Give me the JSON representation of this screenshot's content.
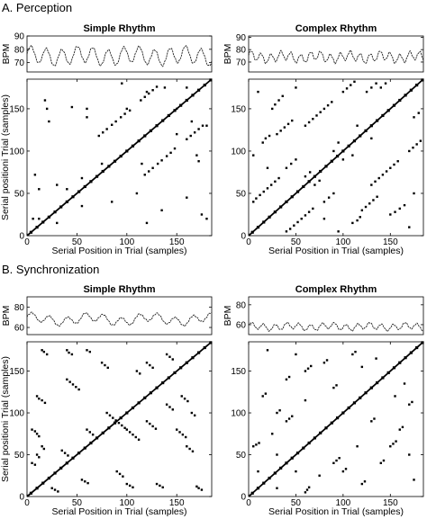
{
  "sections": [
    {
      "label": "A. Perception"
    },
    {
      "label": "B. Synchronization"
    }
  ],
  "chart_data": [
    {
      "type": "line",
      "panel": "A-simple-bpm",
      "title": "Simple Rhythm",
      "ylabel": "BPM",
      "xlim": [
        0,
        185
      ],
      "ylim": [
        63,
        90
      ],
      "yticks": [
        "70",
        "80",
        "90"
      ],
      "xticks": [],
      "signal": {
        "base": 75,
        "amp": 6,
        "period": 15.5,
        "wobble": 1.5
      },
      "grid": false
    },
    {
      "type": "scatter",
      "panel": "A-simple-rp",
      "title": "",
      "xlabel": "Serial Position in Trial (samples)",
      "ylabel": "Serial positioni Trial (samples)",
      "xlim": [
        0,
        185
      ],
      "ylim": [
        0,
        185
      ],
      "xticks": [
        "0",
        "50",
        "100",
        "150"
      ],
      "yticks": [
        "0",
        "50",
        "100",
        "150"
      ],
      "diagonal": true,
      "points": [
        [
          72,
          118
        ],
        [
          76,
          122
        ],
        [
          80,
          126
        ],
        [
          85,
          131
        ],
        [
          89,
          135
        ],
        [
          94,
          140
        ],
        [
          98,
          144
        ],
        [
          103,
          148
        ],
        [
          114,
          160
        ],
        [
          118,
          164
        ],
        [
          122,
          168
        ],
        [
          126,
          172
        ],
        [
          130,
          176
        ],
        [
          118,
          72
        ],
        [
          122,
          76
        ],
        [
          126,
          80
        ],
        [
          131,
          85
        ],
        [
          135,
          89
        ],
        [
          140,
          94
        ],
        [
          144,
          98
        ],
        [
          148,
          103
        ],
        [
          160,
          114
        ],
        [
          164,
          118
        ],
        [
          168,
          122
        ],
        [
          172,
          126
        ],
        [
          176,
          130
        ],
        [
          18,
          160
        ],
        [
          30,
          15
        ],
        [
          45,
          152
        ],
        [
          55,
          35
        ],
        [
          60,
          150
        ],
        [
          85,
          40
        ],
        [
          95,
          180
        ],
        [
          100,
          150
        ],
        [
          110,
          50
        ],
        [
          120,
          170
        ],
        [
          138,
          175
        ],
        [
          150,
          120
        ],
        [
          160,
          45
        ],
        [
          170,
          95
        ],
        [
          180,
          20
        ],
        [
          20,
          150
        ],
        [
          22,
          135
        ],
        [
          8,
          72
        ],
        [
          12,
          55
        ],
        [
          160,
          175
        ],
        [
          150,
          150
        ],
        [
          75,
          85
        ],
        [
          40,
          55
        ],
        [
          30,
          60
        ],
        [
          135,
          30
        ],
        [
          172,
          88
        ],
        [
          175,
          25
        ],
        [
          120,
          15
        ],
        [
          12,
          20
        ],
        [
          55,
          68
        ],
        [
          60,
          140
        ],
        [
          6,
          20
        ],
        [
          165,
          135
        ],
        [
          180,
          130
        ],
        [
          115,
          85
        ]
      ],
      "grid": false
    },
    {
      "type": "line",
      "panel": "A-complex-bpm",
      "title": "Complex Rhythm",
      "ylabel": "BPM",
      "xlim": [
        0,
        185
      ],
      "ylim": [
        62,
        91
      ],
      "yticks": [
        "70",
        "80",
        "90"
      ],
      "xticks": [],
      "signal": {
        "base": 74,
        "amp": 3.5,
        "period": 10.5,
        "wobble": 1.5
      },
      "grid": false
    },
    {
      "type": "scatter",
      "panel": "A-complex-rp",
      "title": "",
      "xlabel": "Serial Position in Trial (samples)",
      "ylabel": "",
      "xlim": [
        0,
        185
      ],
      "ylim": [
        0,
        185
      ],
      "xticks": [
        "0",
        "50",
        "100",
        "150"
      ],
      "yticks": [
        "0",
        "50",
        "100",
        "150"
      ],
      "diagonal": true,
      "points": [
        [
          5,
          40
        ],
        [
          8,
          44
        ],
        [
          12,
          48
        ],
        [
          16,
          52
        ],
        [
          20,
          56
        ],
        [
          24,
          60
        ],
        [
          28,
          64
        ],
        [
          32,
          68
        ],
        [
          40,
          5
        ],
        [
          44,
          8
        ],
        [
          48,
          12
        ],
        [
          52,
          16
        ],
        [
          56,
          20
        ],
        [
          60,
          24
        ],
        [
          64,
          28
        ],
        [
          68,
          32
        ],
        [
          60,
          130
        ],
        [
          64,
          134
        ],
        [
          68,
          138
        ],
        [
          72,
          142
        ],
        [
          76,
          146
        ],
        [
          80,
          150
        ],
        [
          84,
          154
        ],
        [
          88,
          158
        ],
        [
          130,
          60
        ],
        [
          134,
          64
        ],
        [
          138,
          68
        ],
        [
          142,
          72
        ],
        [
          146,
          76
        ],
        [
          150,
          80
        ],
        [
          154,
          84
        ],
        [
          158,
          88
        ],
        [
          100,
          170
        ],
        [
          104,
          174
        ],
        [
          108,
          178
        ],
        [
          112,
          182
        ],
        [
          170,
          100
        ],
        [
          174,
          104
        ],
        [
          178,
          108
        ],
        [
          182,
          112
        ],
        [
          125,
          170
        ],
        [
          130,
          175
        ],
        [
          135,
          180
        ],
        [
          120,
          30
        ],
        [
          124,
          34
        ],
        [
          128,
          38
        ],
        [
          132,
          42
        ],
        [
          136,
          46
        ],
        [
          30,
          120
        ],
        [
          34,
          124
        ],
        [
          38,
          128
        ],
        [
          42,
          132
        ],
        [
          46,
          136
        ],
        [
          150,
          25
        ],
        [
          155,
          28
        ],
        [
          160,
          32
        ],
        [
          165,
          36
        ],
        [
          25,
          150
        ],
        [
          28,
          155
        ],
        [
          32,
          160
        ],
        [
          36,
          165
        ],
        [
          15,
          110
        ],
        [
          18,
          115
        ],
        [
          22,
          118
        ],
        [
          110,
          15
        ],
        [
          115,
          18
        ],
        [
          118,
          22
        ],
        [
          40,
          80
        ],
        [
          45,
          85
        ],
        [
          50,
          90
        ],
        [
          80,
          40
        ],
        [
          85,
          45
        ],
        [
          90,
          50
        ],
        [
          60,
          70
        ],
        [
          65,
          75
        ],
        [
          70,
          60
        ],
        [
          75,
          65
        ],
        [
          10,
          170
        ],
        [
          170,
          10
        ],
        [
          90,
          100
        ],
        [
          95,
          110
        ],
        [
          100,
          90
        ],
        [
          110,
          95
        ],
        [
          175,
          140
        ],
        [
          180,
          145
        ],
        [
          140,
          175
        ],
        [
          145,
          180
        ],
        [
          20,
          80
        ],
        [
          80,
          20
        ],
        [
          5,
          95
        ],
        [
          95,
          5
        ],
        [
          50,
          175
        ],
        [
          175,
          50
        ],
        [
          130,
          115
        ],
        [
          115,
          130
        ]
      ],
      "grid": false
    },
    {
      "type": "line",
      "panel": "B-simple-bpm",
      "title": "Simple Rhythm",
      "ylabel": "BPM",
      "xlim": [
        0,
        185
      ],
      "ylim": [
        53,
        90
      ],
      "yticks": [
        "60",
        "80"
      ],
      "xticks": [],
      "signal": {
        "base": 68,
        "amp": 4,
        "period": 18,
        "wobble": 2.5
      },
      "grid": false
    },
    {
      "type": "scatter",
      "panel": "B-simple-rp",
      "title": "",
      "xlabel": "Serial Position in Trial (samples)",
      "ylabel": "Serial positioni Trial (samples)",
      "xlim": [
        0,
        185
      ],
      "ylim": [
        0,
        185
      ],
      "xticks": [
        "0",
        "50",
        "100",
        "150"
      ],
      "yticks": [
        "0",
        "50",
        "100",
        "150"
      ],
      "diagonal": true,
      "points": [
        [
          15,
          175
        ],
        [
          17,
          173
        ],
        [
          20,
          170
        ],
        [
          40,
          175
        ],
        [
          42,
          172
        ],
        [
          45,
          170
        ],
        [
          60,
          175
        ],
        [
          63,
          173
        ],
        [
          10,
          120
        ],
        [
          12,
          117
        ],
        [
          15,
          115
        ],
        [
          18,
          112
        ],
        [
          5,
          80
        ],
        [
          8,
          78
        ],
        [
          10,
          75
        ],
        [
          12,
          72
        ],
        [
          15,
          60
        ],
        [
          17,
          57
        ],
        [
          10,
          50
        ],
        [
          12,
          47
        ],
        [
          5,
          40
        ],
        [
          8,
          38
        ],
        [
          40,
          140
        ],
        [
          43,
          137
        ],
        [
          46,
          134
        ],
        [
          49,
          131
        ],
        [
          52,
          128
        ],
        [
          80,
          100
        ],
        [
          83,
          97
        ],
        [
          86,
          94
        ],
        [
          89,
          91
        ],
        [
          92,
          88
        ],
        [
          95,
          85
        ],
        [
          98,
          82
        ],
        [
          100,
          80
        ],
        [
          103,
          77
        ],
        [
          106,
          74
        ],
        [
          109,
          71
        ],
        [
          112,
          68
        ],
        [
          120,
          90
        ],
        [
          123,
          87
        ],
        [
          126,
          84
        ],
        [
          129,
          81
        ],
        [
          140,
          110
        ],
        [
          143,
          107
        ],
        [
          146,
          104
        ],
        [
          150,
          80
        ],
        [
          153,
          77
        ],
        [
          156,
          74
        ],
        [
          159,
          71
        ],
        [
          160,
          60
        ],
        [
          163,
          57
        ],
        [
          166,
          54
        ],
        [
          55,
          20
        ],
        [
          58,
          18
        ],
        [
          61,
          16
        ],
        [
          25,
          10
        ],
        [
          28,
          8
        ],
        [
          31,
          6
        ],
        [
          35,
          55
        ],
        [
          38,
          52
        ],
        [
          41,
          49
        ],
        [
          90,
          30
        ],
        [
          93,
          27
        ],
        [
          96,
          24
        ],
        [
          100,
          15
        ],
        [
          103,
          13
        ],
        [
          106,
          11
        ],
        [
          130,
          15
        ],
        [
          133,
          13
        ],
        [
          136,
          11
        ],
        [
          170,
          12
        ],
        [
          172,
          10
        ],
        [
          175,
          8
        ],
        [
          155,
          120
        ],
        [
          158,
          117
        ],
        [
          161,
          114
        ],
        [
          165,
          100
        ],
        [
          168,
          97
        ],
        [
          120,
          160
        ],
        [
          123,
          157
        ],
        [
          126,
          154
        ],
        [
          140,
          170
        ],
        [
          143,
          167
        ],
        [
          146,
          164
        ],
        [
          75,
          160
        ],
        [
          78,
          157
        ],
        [
          81,
          154
        ],
        [
          110,
          150
        ],
        [
          113,
          147
        ],
        [
          60,
          80
        ],
        [
          63,
          77
        ],
        [
          66,
          74
        ]
      ],
      "grid": false
    },
    {
      "type": "line",
      "panel": "B-complex-bpm",
      "title": "Complex Rhythm",
      "ylabel": "BPM",
      "xlim": [
        0,
        185
      ],
      "ylim": [
        50,
        88
      ],
      "yticks": [
        "60",
        "80"
      ],
      "xticks": [],
      "signal": {
        "base": 58,
        "amp": 3,
        "period": 12.5,
        "wobble": 1.2
      },
      "grid": false
    },
    {
      "type": "scatter",
      "panel": "B-complex-rp",
      "title": "",
      "xlabel": "Serial Position in Trial (samples)",
      "ylabel": "",
      "xlim": [
        0,
        185
      ],
      "ylim": [
        0,
        185
      ],
      "xticks": [
        "0",
        "50",
        "100",
        "150"
      ],
      "yticks": [
        "0",
        "50",
        "100",
        "150"
      ],
      "diagonal": true,
      "points": [
        [
          5,
          60
        ],
        [
          8,
          62
        ],
        [
          11,
          64
        ],
        [
          60,
          5
        ],
        [
          62,
          8
        ],
        [
          64,
          11
        ],
        [
          40,
          90
        ],
        [
          43,
          93
        ],
        [
          46,
          96
        ],
        [
          90,
          40
        ],
        [
          93,
          43
        ],
        [
          96,
          46
        ],
        [
          60,
          150
        ],
        [
          63,
          153
        ],
        [
          66,
          156
        ],
        [
          150,
          60
        ],
        [
          153,
          63
        ],
        [
          156,
          66
        ],
        [
          80,
          160
        ],
        [
          83,
          163
        ],
        [
          160,
          80
        ],
        [
          163,
          83
        ],
        [
          100,
          30
        ],
        [
          103,
          33
        ],
        [
          30,
          100
        ],
        [
          33,
          103
        ],
        [
          120,
          15
        ],
        [
          123,
          18
        ],
        [
          15,
          120
        ],
        [
          18,
          123
        ],
        [
          140,
          40
        ],
        [
          143,
          43
        ],
        [
          40,
          140
        ],
        [
          43,
          143
        ],
        [
          170,
          110
        ],
        [
          173,
          113
        ],
        [
          110,
          170
        ],
        [
          113,
          173
        ],
        [
          175,
          20
        ],
        [
          20,
          175
        ],
        [
          130,
          90
        ],
        [
          133,
          93
        ],
        [
          90,
          130
        ],
        [
          93,
          133
        ],
        [
          50,
          170
        ],
        [
          170,
          50
        ],
        [
          25,
          75
        ],
        [
          75,
          25
        ],
        [
          115,
          60
        ],
        [
          60,
          115
        ],
        [
          155,
          120
        ],
        [
          120,
          155
        ],
        [
          10,
          30
        ],
        [
          30,
          10
        ],
        [
          50,
          30
        ],
        [
          30,
          50
        ],
        [
          135,
          165
        ],
        [
          165,
          135
        ]
      ],
      "grid": false
    }
  ]
}
